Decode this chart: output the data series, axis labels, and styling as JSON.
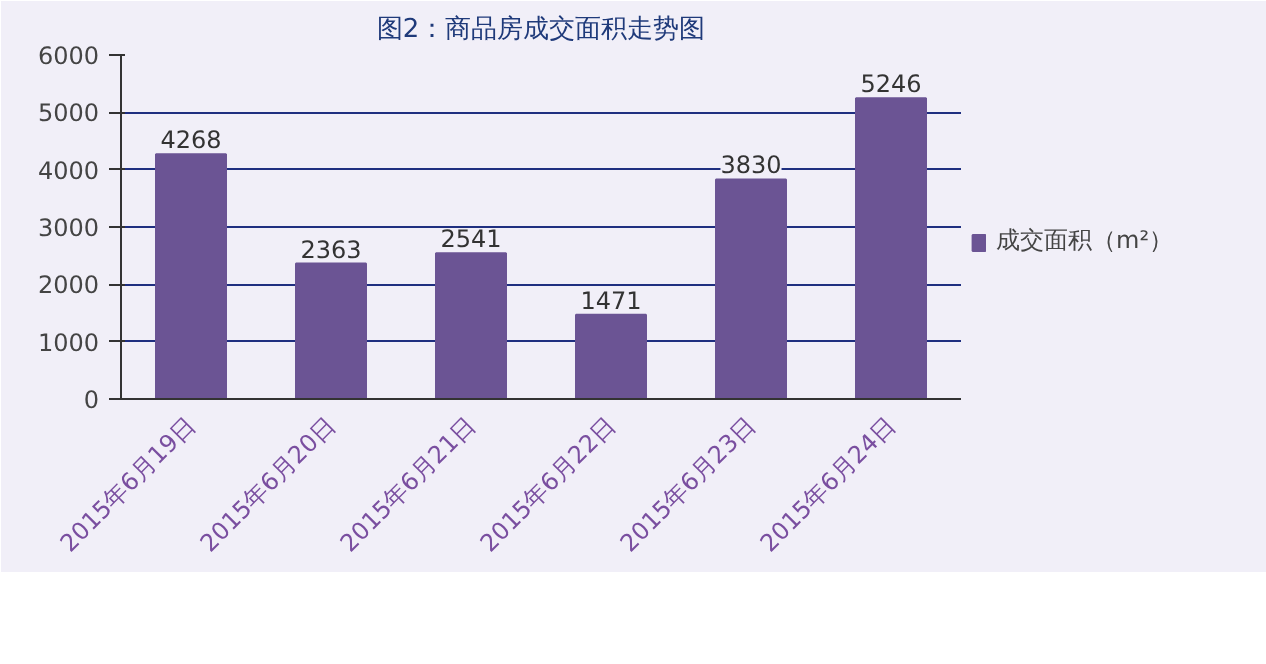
{
  "chart_data": {
    "type": "bar",
    "title": "图2：商品房成交面积走势图",
    "categories": [
      "2015年6月19日",
      "2015年6月20日",
      "2015年6月21日",
      "2015年6月22日",
      "2015年6月23日",
      "2015年6月24日"
    ],
    "series": [
      {
        "name": "成交面积（m²）",
        "color": "#6b5494",
        "values": [
          4268,
          2363,
          2541,
          1471,
          3830,
          5246
        ]
      }
    ],
    "ylim": [
      0,
      6000
    ],
    "yticks": [
      0,
      1000,
      2000,
      3000,
      4000,
      5000,
      6000
    ],
    "grid": "y",
    "legend": "right",
    "data_labels": true
  }
}
